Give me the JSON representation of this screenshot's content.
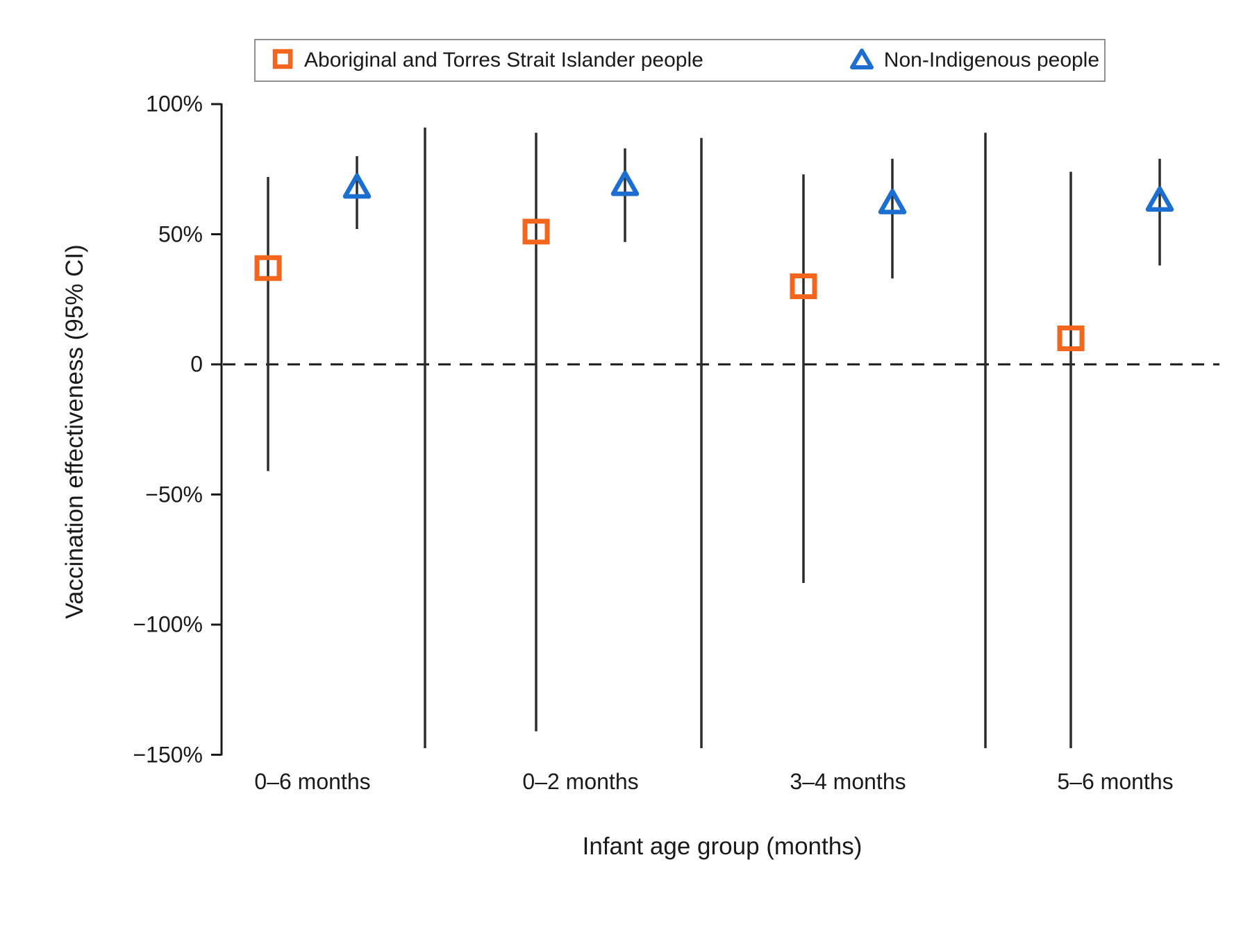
{
  "legend": {
    "items": [
      {
        "label": "Aboriginal and Torres Strait Islander people",
        "marker": "open-square",
        "color": "#F4661D"
      },
      {
        "label": "Non-Indigenous people",
        "marker": "open-triangle",
        "color": "#1C6FD1"
      }
    ]
  },
  "y_axis": {
    "title": "Vaccination effectiveness (95% CI)",
    "tick_labels": [
      "100%",
      "50%",
      "0",
      "−50%",
      "−100%",
      "−150%"
    ],
    "tick_values": [
      100,
      50,
      0,
      -50,
      -100,
      -150
    ]
  },
  "x_axis": {
    "title": "Infant age group (months)",
    "categories": [
      "0–6 months",
      "0–2 months",
      "3–4 months",
      "5–6 months"
    ]
  },
  "chart_data": {
    "type": "scatter",
    "subtype": "point-estimates-with-95CI-error-bars",
    "categories": [
      "0–6 months",
      "0–2 months",
      "3–4 months",
      "5–6 months"
    ],
    "ylim": [
      -150,
      100
    ],
    "zero_reference_line": {
      "value": 0,
      "style": "dashed",
      "color": "#1a1a1a"
    },
    "grid": false,
    "legend_position": "top",
    "series": [
      {
        "name": "Aboriginal and Torres Strait Islander people",
        "marker": "open-square",
        "color": "#F4661D",
        "ve_percent": [
          37,
          51,
          30,
          10
        ],
        "ci_high_percent": [
          72,
          89,
          73,
          74
        ],
        "ci_low_percent": [
          -41,
          -141,
          -84,
          -150
        ],
        "ci_low_clipped_below_axis": [
          false,
          false,
          false,
          true
        ]
      },
      {
        "name": "Non-Indigenous people",
        "marker": "open-triangle",
        "color": "#1C6FD1",
        "ve_percent": [
          68,
          69,
          62,
          63
        ],
        "ci_high_percent": [
          80,
          83,
          79,
          79
        ],
        "ci_low_percent": [
          52,
          47,
          33,
          38
        ],
        "ci_low_clipped_below_axis": [
          false,
          false,
          false,
          false
        ]
      }
    ],
    "unmarked_ci_lines": [
      {
        "position": "between 0–6 months and 0–2 months",
        "ci_high_percent": 91,
        "ci_low_clipped_below_axis": true
      },
      {
        "position": "between 0–2 months and 3–4 months",
        "ci_high_percent": 87,
        "ci_low_clipped_below_axis": true
      },
      {
        "position": "between 3–4 months and 5–6 months",
        "ci_high_percent": 89,
        "ci_low_clipped_below_axis": true
      }
    ],
    "notes": "Point estimates with vertical 95% confidence-interval lines; unmarked CI lines have point estimates below the visible axis range and are clipped at −150%."
  },
  "colors": {
    "axis": "#1a1a1a",
    "ci_line": "#2d2d2d",
    "legend_border": "#8f8f8f",
    "background": "#ffffff"
  }
}
